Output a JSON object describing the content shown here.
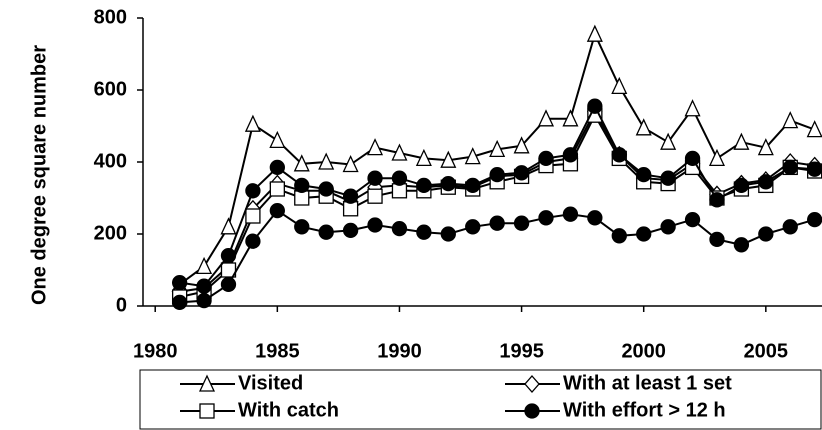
{
  "chart_data": {
    "type": "line",
    "y_label": "One degree square number",
    "x": [
      1981,
      1982,
      1983,
      1984,
      1985,
      1986,
      1987,
      1988,
      1989,
      1990,
      1991,
      1992,
      1993,
      1994,
      1995,
      1996,
      1997,
      1998,
      1999,
      2000,
      2001,
      2002,
      2003,
      2004,
      2005,
      2006,
      2007
    ],
    "series": [
      {
        "name": "Visited",
        "color": "#000000",
        "marker": "triangle",
        "filled": false,
        "values": [
          60,
          110,
          220,
          505,
          460,
          395,
          400,
          393,
          440,
          425,
          410,
          405,
          415,
          435,
          445,
          520,
          520,
          755,
          610,
          495,
          455,
          548,
          410,
          455,
          440,
          515,
          490
        ]
      },
      {
        "name": "With at least 1 set",
        "color": "#000000",
        "marker": "diamond",
        "filled": false,
        "values": [
          40,
          50,
          110,
          270,
          340,
          320,
          320,
          290,
          330,
          335,
          330,
          335,
          330,
          360,
          365,
          400,
          410,
          540,
          420,
          355,
          350,
          395,
          310,
          340,
          350,
          400,
          390
        ]
      },
      {
        "name": "With catch",
        "color": "#000000",
        "marker": "square",
        "filled": false,
        "values": [
          25,
          40,
          100,
          250,
          325,
          300,
          305,
          270,
          305,
          320,
          320,
          330,
          325,
          345,
          360,
          390,
          395,
          530,
          410,
          345,
          340,
          385,
          300,
          325,
          335,
          385,
          375
        ]
      },
      {
        "name": "With effort > 12 h",
        "color": "#000000",
        "marker": "circle",
        "filled": true,
        "values": [
          65,
          55,
          140,
          320,
          385,
          335,
          325,
          305,
          355,
          355,
          335,
          340,
          335,
          365,
          370,
          410,
          420,
          555,
          420,
          365,
          355,
          410,
          295,
          335,
          345,
          385,
          380
        ]
      },
      {
        "color": "#000000",
        "marker": "circle",
        "filled": true,
        "values": [
          10,
          15,
          60,
          180,
          265,
          220,
          205,
          210,
          225,
          215,
          205,
          200,
          220,
          230,
          230,
          245,
          255,
          245,
          195,
          200,
          220,
          240,
          185,
          170,
          200,
          220,
          240
        ]
      }
    ],
    "xlim": [
      1979.5,
      2007.3
    ],
    "xticks": [
      1980,
      1985,
      1990,
      1995,
      2000,
      2005
    ],
    "ylim": [
      0,
      800
    ],
    "yticks": [
      0,
      200,
      400,
      600,
      800
    ],
    "grid": false
  }
}
